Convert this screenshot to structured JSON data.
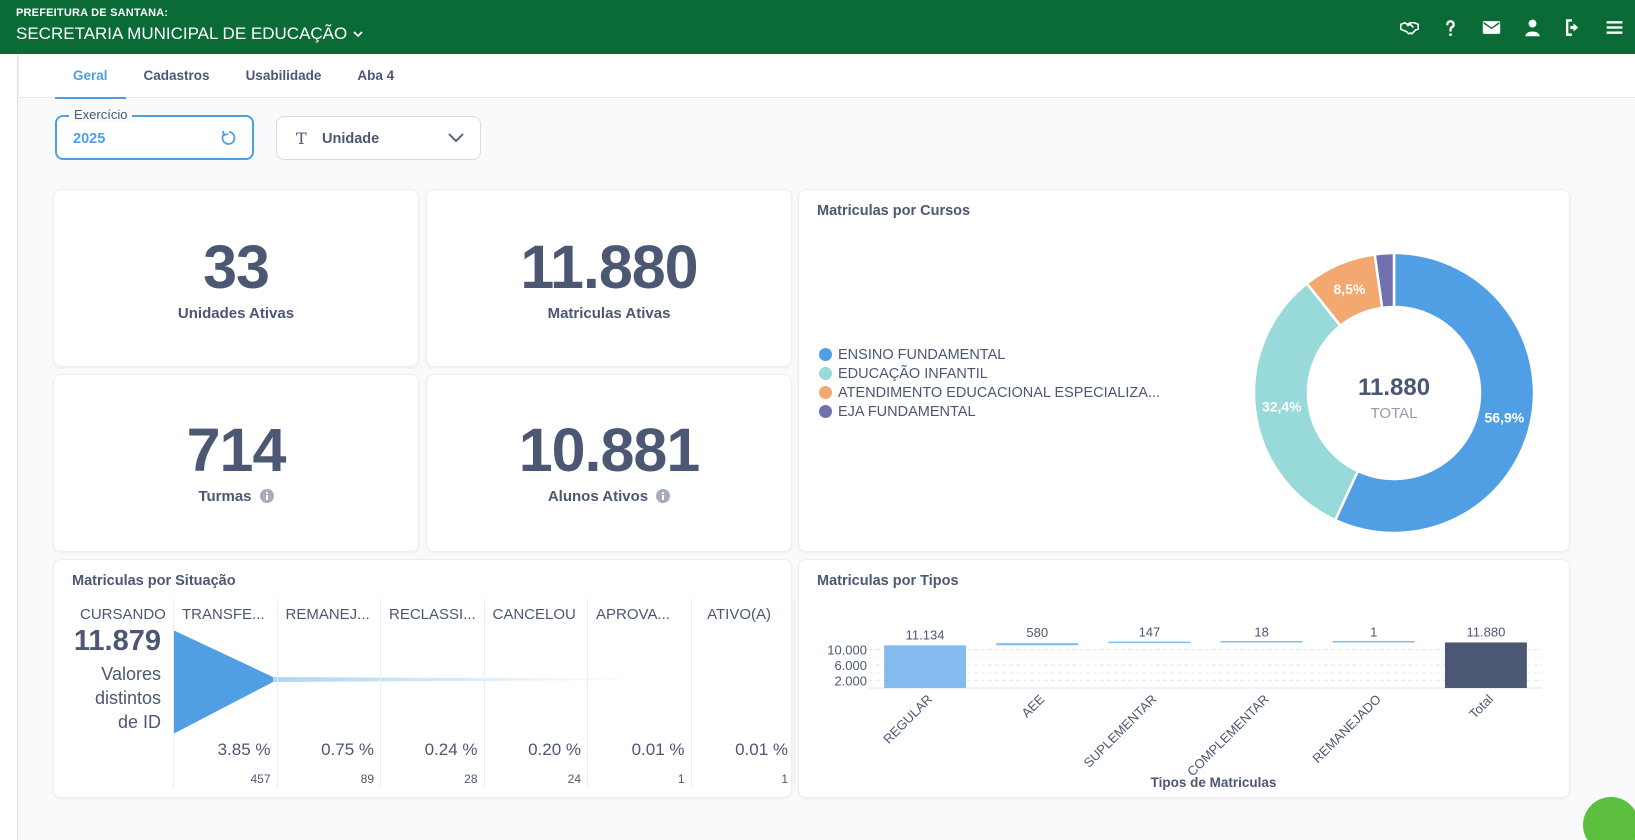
{
  "header": {
    "org_small": "PREFEITURA DE SANTANA:",
    "org_name": "SECRETARIA MUNICIPAL DE EDUCAÇÃO",
    "icons": [
      "handshake-icon",
      "help-icon",
      "mail-icon",
      "user-icon",
      "logout-icon",
      "menu-icon"
    ]
  },
  "tabs": [
    {
      "label": "Geral",
      "active": true
    },
    {
      "label": "Cadastros",
      "active": false
    },
    {
      "label": "Usabilidade",
      "active": false
    },
    {
      "label": "Aba 4",
      "active": false
    }
  ],
  "filters": {
    "year": {
      "label": "Exercício",
      "value": "2025"
    },
    "unit": {
      "label": "Unidade"
    }
  },
  "scalars": {
    "unidades": {
      "value": "33",
      "label": "Unidades Ativas"
    },
    "matriculas": {
      "value": "11.880",
      "label": "Matriculas Ativas"
    },
    "turmas": {
      "value": "714",
      "label": "Turmas"
    },
    "alunos": {
      "value": "10.881",
      "label": "Alunos Ativos"
    }
  },
  "donut": {
    "title": "Matriculas por Cursos",
    "total_value": "11.880",
    "total_label": "TOTAL",
    "legend": [
      {
        "label": "ENSINO FUNDAMENTAL",
        "color": "#509ee3"
      },
      {
        "label": "EDUCAÇÃO INFANTIL",
        "color": "#98d9d9"
      },
      {
        "label": "ATENDIMENTO EDUCACIONAL ESPECIALIZA...",
        "color": "#f2a86f"
      },
      {
        "label": "EJA FUNDAMENTAL",
        "color": "#7172ad"
      }
    ],
    "percent_labels": [
      "56,9%",
      "32,4%",
      "8,5%"
    ]
  },
  "funnel": {
    "title": "Matriculas por Situação",
    "first_label": "CURSANDO",
    "first_value": "11.879",
    "first_caption_1": "Valores",
    "first_caption_2": "distintos",
    "first_caption_3": "de ID",
    "columns": [
      {
        "label": "TRANSFE...",
        "pct": "3.85 %",
        "count": "457"
      },
      {
        "label": "REMANEJ...",
        "pct": "0.75 %",
        "count": "89"
      },
      {
        "label": "RECLASSI...",
        "pct": "0.24 %",
        "count": "28"
      },
      {
        "label": "CANCELOU",
        "pct": "0.20 %",
        "count": "24"
      },
      {
        "label": "APROVA...",
        "pct": "0.01 %",
        "count": "1"
      },
      {
        "label": "ATIVO(A)",
        "pct": "0.01 %",
        "count": "1"
      }
    ]
  },
  "bar_title": "Matriculas por Tipos",
  "chart_data": {
    "type": "bar",
    "title": "Matriculas por Tipos",
    "categories": [
      "REGULAR",
      "AEE",
      "SUPLEMENTAR",
      "COMPLEMENTAR",
      "REMANEJADO",
      "Total"
    ],
    "values": [
      11134,
      580,
      147,
      18,
      1,
      11880
    ],
    "value_labels": [
      "11.134",
      "580",
      "147",
      "18",
      "1",
      "11.880"
    ],
    "xlabel": "Tipos de Matriculas",
    "ylabel": "",
    "yticks": [
      "10.000",
      "6.000",
      "2.000"
    ],
    "ytick_values": [
      10000,
      6000,
      2000
    ],
    "ylim": [
      0,
      12000
    ],
    "waterfall": true,
    "colors": {
      "increase": "#84bbee",
      "total": "#4c5773"
    }
  },
  "donut_chart_data": {
    "type": "pie",
    "slices": [
      {
        "label": "ENSINO FUNDAMENTAL",
        "percent": 56.9
      },
      {
        "label": "EDUCAÇÃO INFANTIL",
        "percent": 32.4
      },
      {
        "label": "ATENDIMENTO EDUCACIONAL ESPECIALIZA...",
        "percent": 8.5
      },
      {
        "label": "EJA FUNDAMENTAL",
        "percent": 2.2
      }
    ]
  }
}
